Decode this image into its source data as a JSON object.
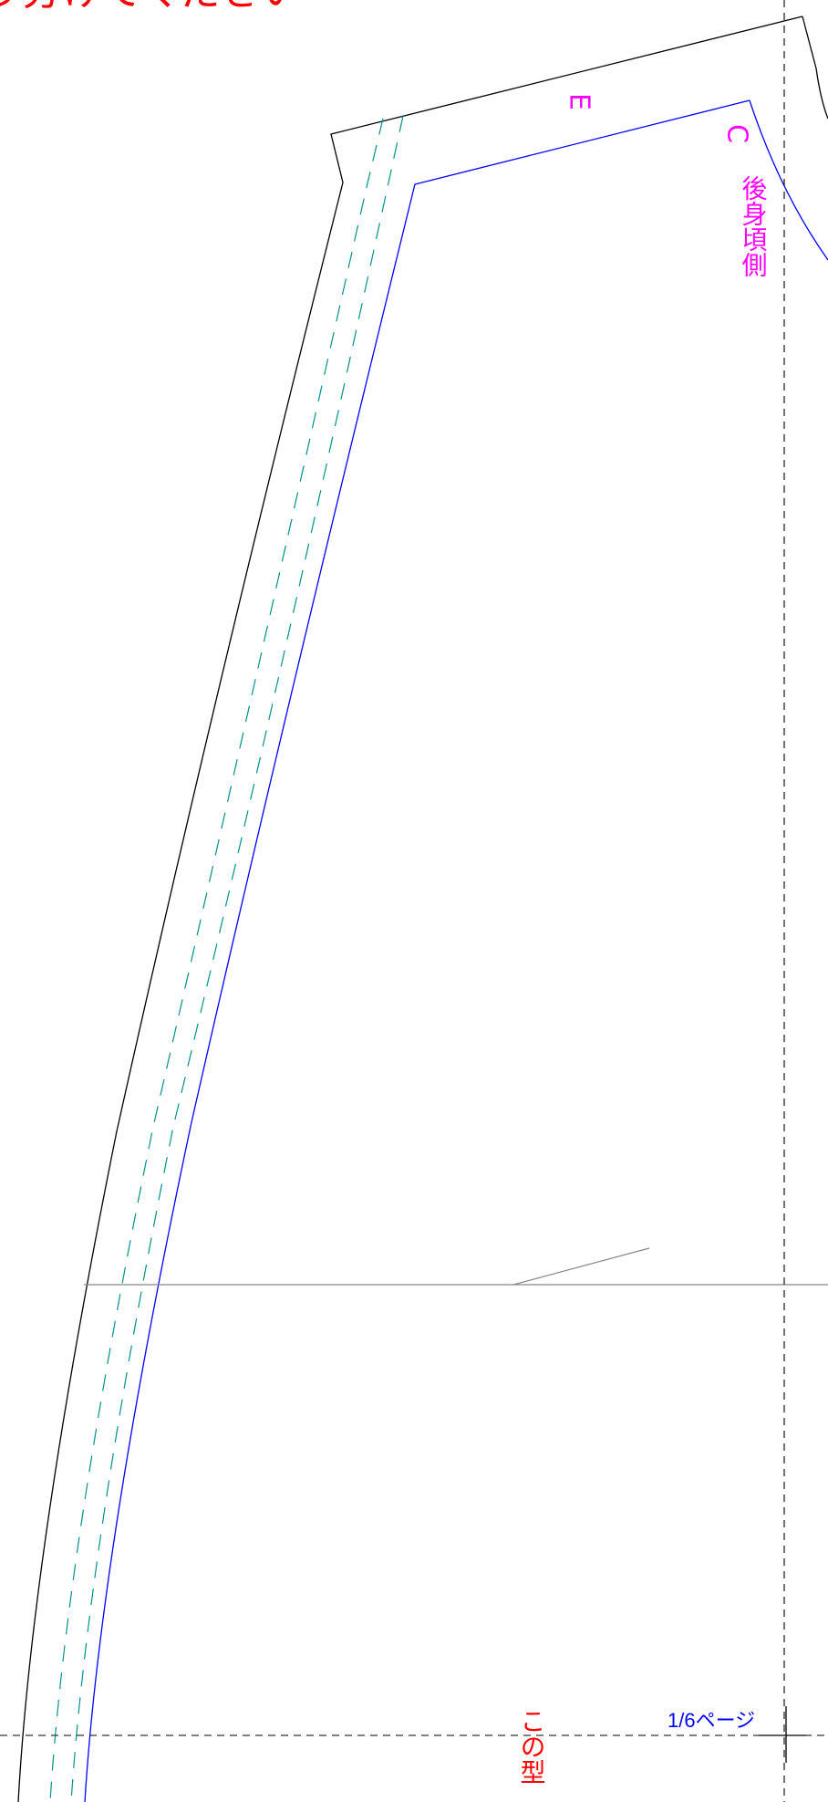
{
  "labels": {
    "top_cutoff_instruction": "り分けてください",
    "point_e": "E",
    "point_c": "C",
    "back_neck_side": "後身頃側",
    "bottom_instruction": "この型",
    "page_number": "1/6ページ"
  },
  "colors": {
    "outer_cut_line": "#000000",
    "seam_line": "#0000ff",
    "stitch_line": "#009090",
    "label_magenta": "#ff00ff",
    "label_red": "#ff0000",
    "page_number": "#0000ff",
    "guide_dashed": "#000000",
    "reference_line": "#888888"
  }
}
